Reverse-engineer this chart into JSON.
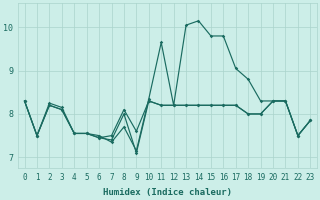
{
  "xlabel": "Humidex (Indice chaleur)",
  "bg_color": "#cceee8",
  "grid_color": "#aad4cc",
  "line_color": "#1a6b60",
  "xlim": [
    -0.5,
    23.5
  ],
  "ylim": [
    6.75,
    10.55
  ],
  "yticks": [
    7,
    8,
    9,
    10
  ],
  "xticks": [
    0,
    1,
    2,
    3,
    4,
    5,
    6,
    7,
    8,
    9,
    10,
    11,
    12,
    13,
    14,
    15,
    16,
    17,
    18,
    19,
    20,
    21,
    22,
    23
  ],
  "line1_x": [
    0,
    1,
    2,
    3,
    4,
    5,
    6,
    7,
    8,
    9,
    10,
    11,
    12,
    13,
    14,
    15,
    16,
    17,
    18,
    19,
    20,
    21,
    22,
    23
  ],
  "line1_y": [
    8.3,
    7.5,
    8.25,
    8.15,
    7.55,
    7.55,
    7.5,
    7.35,
    7.7,
    7.15,
    8.35,
    9.65,
    8.2,
    10.05,
    10.15,
    9.8,
    9.8,
    9.05,
    8.8,
    8.3,
    8.3,
    8.3,
    7.5,
    7.85
  ],
  "line2_x": [
    0,
    1,
    2,
    3,
    4,
    5,
    6,
    7,
    8,
    9,
    10,
    11,
    12,
    13,
    14,
    15,
    16,
    17,
    18,
    19,
    20,
    21,
    22,
    23
  ],
  "line2_y": [
    8.3,
    7.5,
    8.2,
    8.1,
    7.55,
    7.55,
    7.45,
    7.5,
    8.1,
    7.6,
    8.3,
    8.2,
    8.2,
    8.2,
    8.2,
    8.2,
    8.2,
    8.2,
    8.0,
    8.0,
    8.3,
    8.3,
    7.5,
    7.85
  ],
  "line3_x": [
    0,
    1,
    2,
    3,
    4,
    5,
    6,
    7,
    8,
    9,
    10,
    11,
    12,
    13,
    14,
    15,
    16,
    17,
    18,
    19,
    20,
    21,
    22,
    23
  ],
  "line3_y": [
    8.3,
    7.5,
    8.2,
    8.1,
    7.55,
    7.55,
    7.45,
    7.4,
    8.0,
    7.1,
    8.3,
    8.2,
    8.2,
    8.2,
    8.2,
    8.2,
    8.2,
    8.2,
    8.0,
    8.0,
    8.3,
    8.3,
    7.5,
    7.85
  ],
  "marker_size": 1.8,
  "line_width": 0.85,
  "tick_fontsize": 5.5,
  "xlabel_fontsize": 6.5
}
